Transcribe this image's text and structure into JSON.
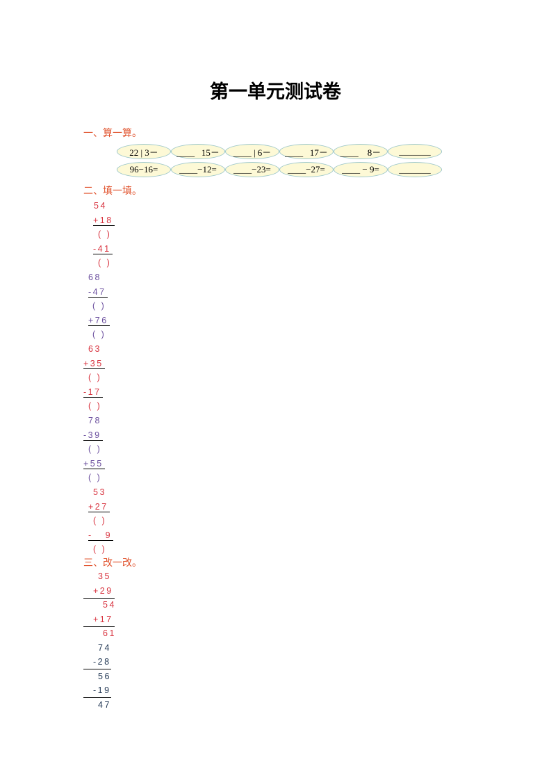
{
  "title": "第一单元测试卷",
  "colors": {
    "heading": "#e0502a",
    "red": "#d8333f",
    "purple": "#6b4f9e",
    "navy": "#1f3552"
  },
  "section1": {
    "heading": "一、算一算。",
    "rows": [
      [
        "22 | 3－",
        "____   15－",
        "____ | 6－",
        "____   17－",
        "____    8－",
        "_______"
      ],
      [
        "96−16=",
        "____−12=",
        "____−23=",
        "____−27=",
        "____ − 9=",
        "_______"
      ]
    ]
  },
  "section2": {
    "heading": "二、填一填。",
    "lines": [
      {
        "text": "54",
        "color": "red"
      },
      {
        "text": "+18",
        "color": "red",
        "underline": true
      },
      {
        "text": "( )",
        "color": "red"
      },
      {
        "text": "-41",
        "color": "red",
        "underline": true
      },
      {
        "text": "( )",
        "color": "red"
      },
      {
        "text": "68",
        "color": "purple"
      },
      {
        "text": "-47",
        "color": "purple",
        "underline": true
      },
      {
        "text": "( )",
        "color": "purple"
      },
      {
        "text": "+76",
        "color": "purple",
        "underline": true
      },
      {
        "text": "( )",
        "color": "purple"
      },
      {
        "text": "63",
        "color": "red"
      },
      {
        "text": "+35",
        "color": "red",
        "underline": true
      },
      {
        "text": "( )",
        "color": "red"
      },
      {
        "text": "-17",
        "color": "red",
        "underline": true
      },
      {
        "text": "( )",
        "color": "red"
      },
      {
        "text": "78",
        "color": "purple"
      },
      {
        "text": "-39",
        "color": "purple",
        "underline": true
      },
      {
        "text": "( )",
        "color": "purple"
      },
      {
        "text": "+55",
        "color": "purple",
        "underline": true
      },
      {
        "text": "( )",
        "color": "purple"
      },
      {
        "text": "53",
        "color": "red"
      },
      {
        "text": "+27",
        "color": "red",
        "underline": true
      },
      {
        "text": "( )",
        "color": "red"
      },
      {
        "text": "-   9",
        "color": "red",
        "underline": true
      },
      {
        "text": "( )",
        "color": "red"
      }
    ]
  },
  "section3": {
    "heading": "三、改一改。",
    "lines": [
      {
        "text": "35",
        "color": "red"
      },
      {
        "text": "+29",
        "color": "red",
        "rule": true
      },
      {
        "text": "54",
        "color": "red"
      },
      {
        "text": "+17",
        "color": "red",
        "rule": true
      },
      {
        "text": "61",
        "color": "red"
      },
      {
        "text": "74",
        "color": "navy"
      },
      {
        "text": "-28",
        "color": "navy",
        "rule": true
      },
      {
        "text": "56",
        "color": "navy"
      },
      {
        "text": "-19",
        "color": "navy",
        "rule": true
      },
      {
        "text": "47",
        "color": "navy"
      }
    ]
  }
}
